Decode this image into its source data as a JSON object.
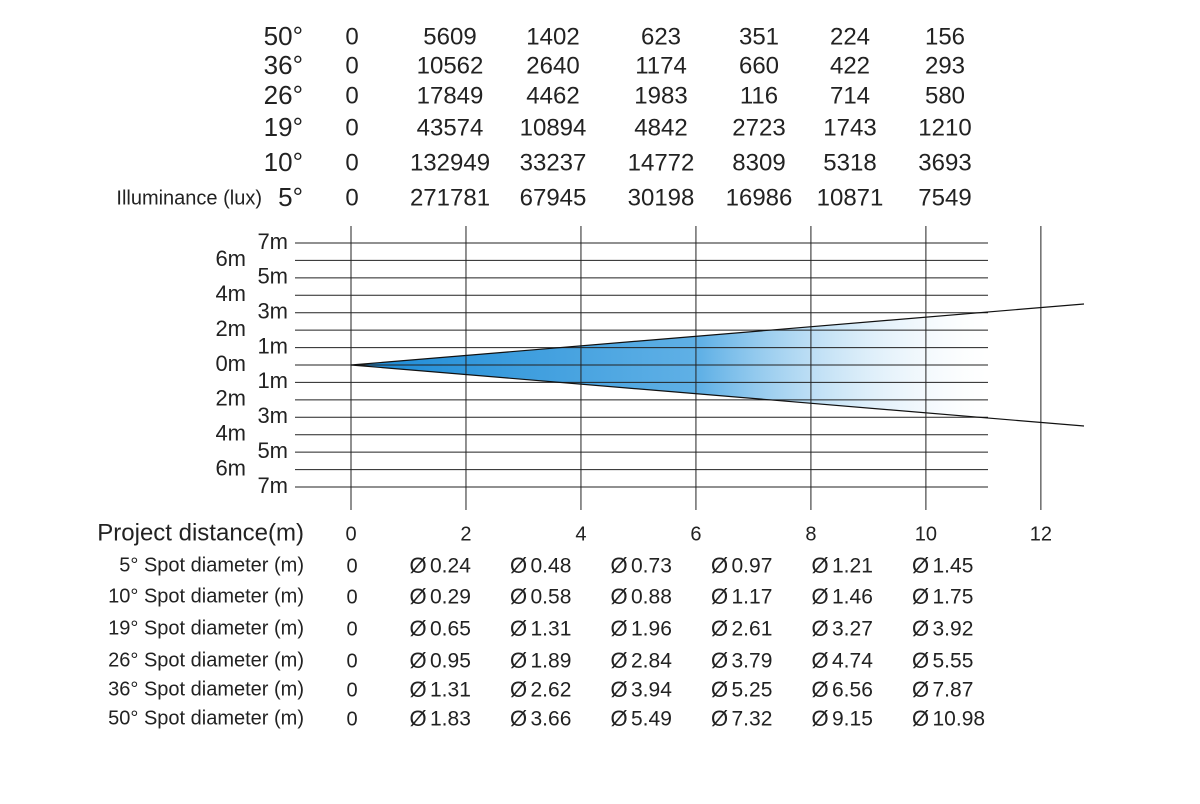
{
  "chart_data": {
    "type": "table",
    "title": "",
    "illuminance": {
      "label": "Illuminance (lux)",
      "rows": [
        {
          "angle": "50°",
          "values": [
            "0",
            "5609",
            "1402",
            "623",
            "351",
            "224",
            "156"
          ]
        },
        {
          "angle": "36°",
          "values": [
            "0",
            "10562",
            "2640",
            "1174",
            "660",
            "422",
            "293"
          ]
        },
        {
          "angle": "26°",
          "values": [
            "0",
            "17849",
            "4462",
            "1983",
            "116",
            "714",
            "580"
          ]
        },
        {
          "angle": "19°",
          "values": [
            "0",
            "43574",
            "10894",
            "4842",
            "2723",
            "1743",
            "1210"
          ]
        },
        {
          "angle": "10°",
          "values": [
            "0",
            "132949",
            "33237",
            "14772",
            "8309",
            "5318",
            "3693"
          ]
        },
        {
          "angle": "5°",
          "values": [
            "0",
            "271781",
            "67945",
            "30198",
            "16986",
            "10871",
            "7549"
          ]
        }
      ]
    },
    "beam_plot": {
      "x_ticks": [
        0,
        2,
        4,
        6,
        8,
        10,
        12
      ],
      "xlim": [
        0,
        12.75
      ],
      "ylim": [
        -7,
        7
      ],
      "inner_labels": [
        "7m",
        "5m",
        "3m",
        "1m",
        "1m",
        "3m",
        "5m",
        "7m"
      ],
      "inner_label_values": [
        7,
        5,
        3,
        1,
        -1,
        -3,
        -5,
        -7
      ],
      "outer_labels": [
        "6m",
        "4m",
        "2m",
        "0m",
        "2m",
        "4m",
        "6m"
      ],
      "outer_label_values": [
        6,
        4,
        2,
        0,
        -2,
        -4,
        -6
      ],
      "grid": true,
      "beam_color": "#1a8ad6",
      "beam_edge_at_max_x": 3.5
    },
    "project_distance": {
      "label": "Project distance(m)",
      "values": [
        "0",
        "2",
        "4",
        "6",
        "8",
        "10",
        "12"
      ]
    },
    "spot_diameters": {
      "diameter_symbol": "Ø",
      "rows": [
        {
          "label": "5° Spot diameter (m)",
          "values": [
            "0",
            "0.24",
            "0.48",
            "0.73",
            "0.97",
            "1.21",
            "1.45"
          ]
        },
        {
          "label": "10° Spot diameter (m)",
          "values": [
            "0",
            "0.29",
            "0.58",
            "0.88",
            "1.17",
            "1.46",
            "1.75"
          ]
        },
        {
          "label": "19° Spot diameter (m)",
          "values": [
            "0",
            "0.65",
            "1.31",
            "1.96",
            "2.61",
            "3.27",
            "3.92"
          ]
        },
        {
          "label": "26° Spot diameter (m)",
          "values": [
            "0",
            "0.95",
            "1.89",
            "2.84",
            "3.79",
            "4.74",
            "5.55"
          ]
        },
        {
          "label": "36° Spot diameter (m)",
          "values": [
            "0",
            "1.31",
            "2.62",
            "3.94",
            "5.25",
            "6.56",
            "7.87"
          ]
        },
        {
          "label": "50° Spot diameter (m)",
          "values": [
            "0",
            "1.83",
            "3.66",
            "5.49",
            "7.32",
            "9.15",
            "10.98"
          ]
        }
      ]
    }
  }
}
